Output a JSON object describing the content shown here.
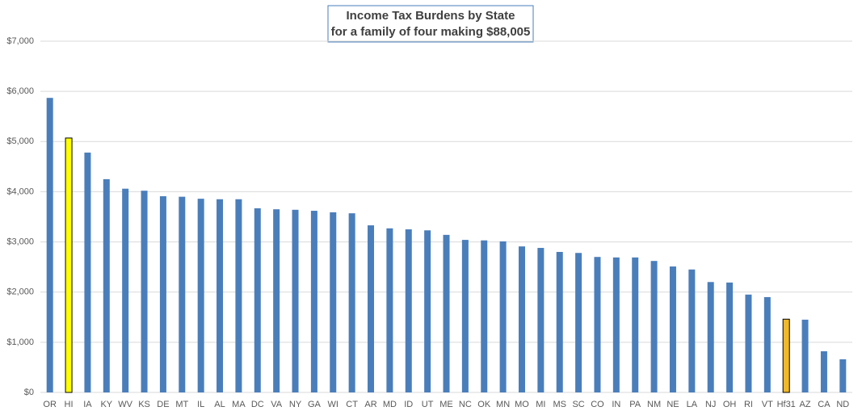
{
  "chart_data": {
    "type": "bar",
    "title": "Income Tax Burdens by State",
    "subtitle": "for a family of four making $88,005",
    "categories": [
      "OR",
      "HI",
      "IA",
      "KY",
      "WV",
      "KS",
      "DE",
      "MT",
      "IL",
      "AL",
      "MA",
      "DC",
      "VA",
      "NY",
      "GA",
      "WI",
      "CT",
      "AR",
      "MD",
      "ID",
      "UT",
      "ME",
      "NC",
      "OK",
      "MN",
      "MO",
      "MI",
      "MS",
      "SC",
      "CO",
      "IN",
      "PA",
      "NM",
      "NE",
      "LA",
      "NJ",
      "OH",
      "RI",
      "VT",
      "Hf31",
      "AZ",
      "CA",
      "ND"
    ],
    "values": [
      5870,
      5070,
      4780,
      4250,
      4060,
      4020,
      3910,
      3900,
      3860,
      3850,
      3850,
      3670,
      3650,
      3640,
      3620,
      3590,
      3570,
      3330,
      3270,
      3250,
      3230,
      3140,
      3040,
      3030,
      3010,
      2910,
      2880,
      2800,
      2780,
      2700,
      2690,
      2690,
      2620,
      2510,
      2450,
      2200,
      2190,
      1950,
      1900,
      1460,
      1450,
      820,
      660
    ],
    "color": "#4a7ebb",
    "colors": [
      "#4a7ebb",
      "#ffff00",
      "#4a7ebb",
      "#4a7ebb",
      "#4a7ebb",
      "#4a7ebb",
      "#4a7ebb",
      "#4a7ebb",
      "#4a7ebb",
      "#4a7ebb",
      "#4a7ebb",
      "#4a7ebb",
      "#4a7ebb",
      "#4a7ebb",
      "#4a7ebb",
      "#4a7ebb",
      "#4a7ebb",
      "#4a7ebb",
      "#4a7ebb",
      "#4a7ebb",
      "#4a7ebb",
      "#4a7ebb",
      "#4a7ebb",
      "#4a7ebb",
      "#4a7ebb",
      "#4a7ebb",
      "#4a7ebb",
      "#4a7ebb",
      "#4a7ebb",
      "#4a7ebb",
      "#4a7ebb",
      "#4a7ebb",
      "#4a7ebb",
      "#4a7ebb",
      "#4a7ebb",
      "#4a7ebb",
      "#4a7ebb",
      "#4a7ebb",
      "#4a7ebb",
      "#f0b92a",
      "#4a7ebb",
      "#4a7ebb",
      "#4a7ebb"
    ],
    "ylim": [
      0,
      7000
    ],
    "yticks": [
      {
        "value": 0,
        "label": "$0"
      },
      {
        "value": 1000,
        "label": "$1,000"
      },
      {
        "value": 2000,
        "label": "$2,000"
      },
      {
        "value": 3000,
        "label": "$3,000"
      },
      {
        "value": 4000,
        "label": "$4,000"
      },
      {
        "value": 5000,
        "label": "$5,000"
      },
      {
        "value": 6000,
        "label": "$6,000"
      },
      {
        "value": 7000,
        "label": "$7,000"
      }
    ],
    "grid": true
  }
}
